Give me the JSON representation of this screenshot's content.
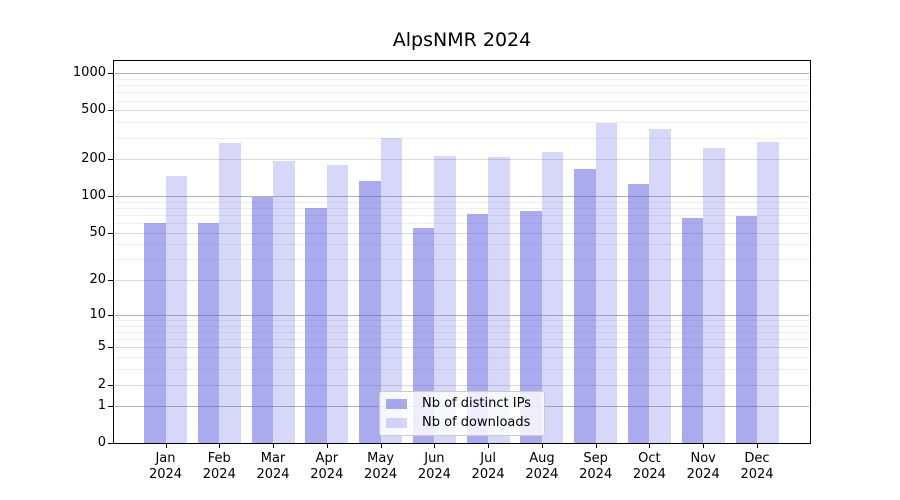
{
  "chart_data": {
    "type": "bar",
    "title": "AlpsNMR 2024",
    "categories": [
      "Jan",
      "Feb",
      "Mar",
      "Apr",
      "May",
      "Jun",
      "Jul",
      "Aug",
      "Sep",
      "Oct",
      "Nov",
      "Dec"
    ],
    "x_tick_year": "2024",
    "series": [
      {
        "name": "Nb of distinct IPs",
        "values": [
          60,
          60,
          99,
          80,
          134,
          55,
          72,
          75,
          166,
          126,
          66,
          69
        ],
        "color": "rgba(86,86,224,0.5)",
        "approx_hex": "#aaaaee"
      },
      {
        "name": "Nb of downloads",
        "values": [
          145,
          270,
          195,
          180,
          300,
          212,
          210,
          230,
          398,
          350,
          245,
          276
        ],
        "color": "rgba(96,96,235,0.25)",
        "approx_hex": "#d9d9fa"
      }
    ],
    "xlabel": "",
    "ylabel": "",
    "yticks": [
      0,
      1,
      2,
      5,
      10,
      20,
      50,
      100,
      200,
      500,
      1000
    ],
    "yscale": "log1p",
    "ylim": [
      0,
      1260
    ],
    "grid": "horizontal",
    "legend_position": "lower center",
    "grid_colors": {
      "major": "#b2b2b2",
      "sub": "#d9d9d9",
      "minor": "#eeeeee"
    }
  }
}
